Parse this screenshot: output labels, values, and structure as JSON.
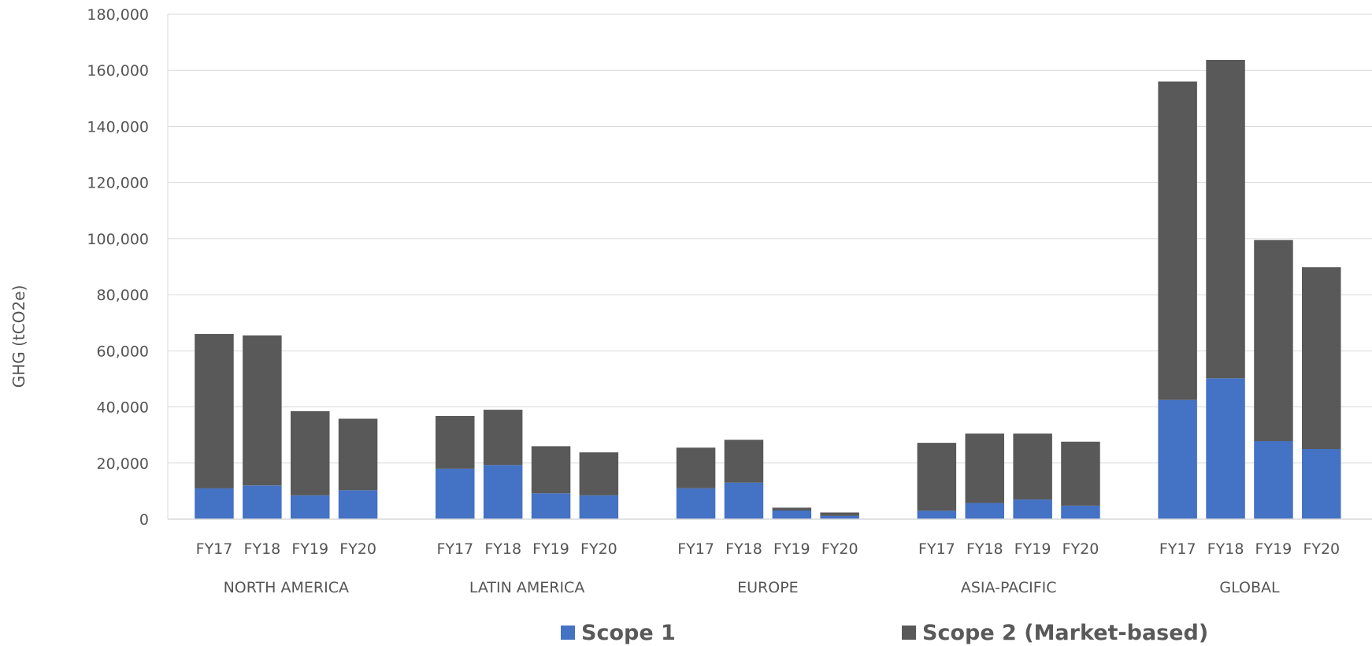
{
  "chart_data": {
    "type": "bar",
    "stacked": true,
    "title": "",
    "xlabel": "",
    "ylabel": "GHG (tCO2e)",
    "ylim": [
      0,
      180000
    ],
    "yticks": [
      0,
      20000,
      40000,
      60000,
      80000,
      100000,
      120000,
      140000,
      160000,
      180000
    ],
    "ytick_labels": [
      "0",
      "20,000",
      "40,000",
      "60,000",
      "80,000",
      "100,000",
      "120,000",
      "140,000",
      "160,000",
      "180,000"
    ],
    "grid": true,
    "legend_position": "bottom",
    "groups": [
      {
        "name": "NORTH AMERICA",
        "categories": [
          "FY17",
          "FY18",
          "FY19",
          "FY20"
        ]
      },
      {
        "name": "LATIN AMERICA",
        "categories": [
          "FY17",
          "FY18",
          "FY19",
          "FY20"
        ]
      },
      {
        "name": "EUROPE",
        "categories": [
          "FY17",
          "FY18",
          "FY19",
          "FY20"
        ]
      },
      {
        "name": "ASIA-PACIFIC",
        "categories": [
          "FY17",
          "FY18",
          "FY19",
          "FY20"
        ]
      },
      {
        "name": "GLOBAL",
        "categories": [
          "FY17",
          "FY18",
          "FY19",
          "FY20"
        ]
      }
    ],
    "series": [
      {
        "name": "Scope 1",
        "color": "#4472C4",
        "values": [
          [
            11000,
            12000,
            8500,
            10300
          ],
          [
            18000,
            19300,
            9200,
            8500
          ],
          [
            11000,
            13000,
            3100,
            1200
          ],
          [
            3000,
            5800,
            7000,
            4800
          ],
          [
            42500,
            50200,
            27800,
            25000
          ]
        ]
      },
      {
        "name": "Scope 2 (Market-based)",
        "color": "#595959",
        "values": [
          [
            55000,
            53500,
            30000,
            25500
          ],
          [
            18800,
            19700,
            16800,
            15300
          ],
          [
            14500,
            15300,
            1000,
            1200
          ],
          [
            24200,
            24700,
            23500,
            22800
          ],
          [
            113500,
            113500,
            71700,
            64800
          ]
        ]
      }
    ]
  }
}
